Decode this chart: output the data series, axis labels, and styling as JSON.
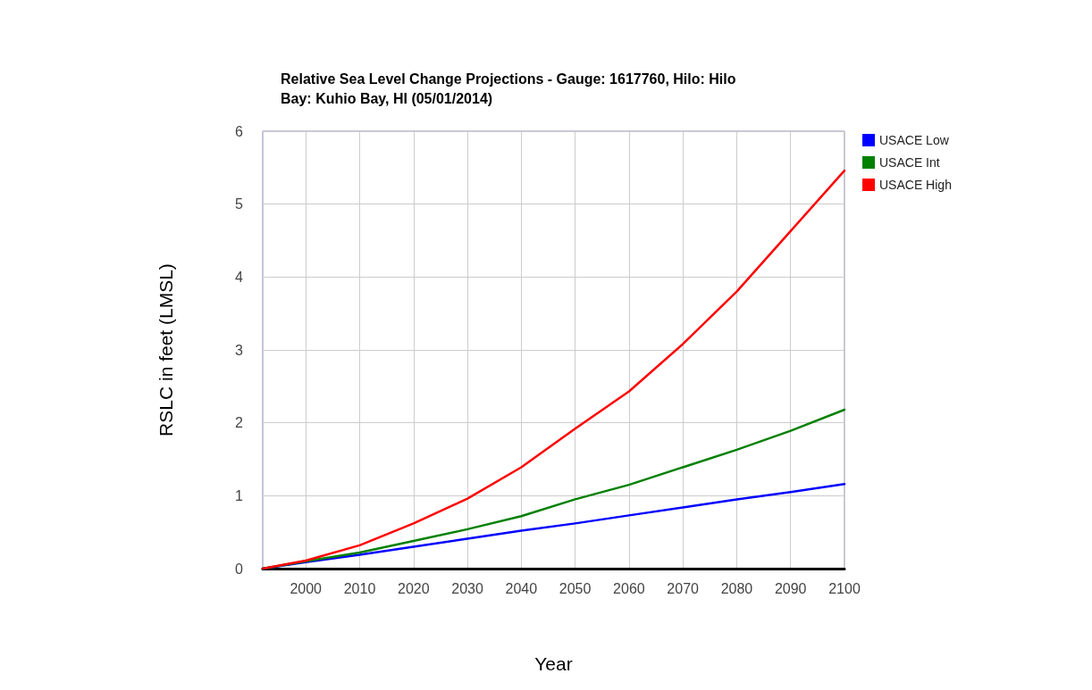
{
  "chart_data": {
    "type": "line",
    "title": "Relative Sea Level Change Projections - Gauge: 1617760, Hilo: Hilo\nBay: Kuhio Bay, HI (05/01/2014)",
    "xlabel": "Year",
    "ylabel": "RSLC in feet (LMSL)",
    "x": [
      1992,
      2000,
      2010,
      2020,
      2030,
      2040,
      2050,
      2060,
      2070,
      2080,
      2090,
      2100
    ],
    "series": [
      {
        "name": "USACE Low",
        "color": "#0000ff",
        "values": [
          0,
          0.09,
          0.19,
          0.3,
          0.41,
          0.52,
          0.62,
          0.73,
          0.84,
          0.95,
          1.05,
          1.16
        ]
      },
      {
        "name": "USACE Int",
        "color": "#008000",
        "values": [
          0,
          0.1,
          0.22,
          0.38,
          0.54,
          0.72,
          0.95,
          1.15,
          1.39,
          1.63,
          1.89,
          2.18
        ]
      },
      {
        "name": "USACE High",
        "color": "#ff0000",
        "values": [
          0,
          0.11,
          0.32,
          0.62,
          0.96,
          1.39,
          1.92,
          2.43,
          3.08,
          3.8,
          4.63,
          5.46
        ]
      }
    ],
    "xlim": [
      1992,
      2100
    ],
    "xticks": [
      2000,
      2010,
      2020,
      2030,
      2040,
      2050,
      2060,
      2070,
      2080,
      2090,
      2100
    ],
    "ylim": [
      0,
      6
    ],
    "yticks": [
      0,
      1,
      2,
      3,
      4,
      5,
      6
    ],
    "grid": true,
    "legend": "top right",
    "marker": "none",
    "line_style": "solid"
  }
}
